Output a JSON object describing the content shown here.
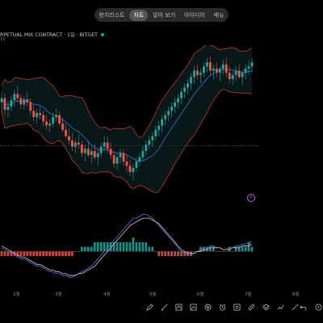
{
  "tabs": [
    {
      "label": "왓치리스트",
      "active": false
    },
    {
      "label": "차트",
      "active": true
    },
    {
      "label": "알아 보기",
      "active": false
    },
    {
      "label": "아이디어",
      "active": false
    },
    {
      "label": "메뉴",
      "active": false
    }
  ],
  "symbol": {
    "title": "RPETUAL MIX CONTRACT · 1일 · BITGET",
    "status_color": "#26a69a"
  },
  "indicator_label": "16",
  "xaxis": {
    "labels": [
      "2월",
      "3월",
      "4월",
      "5월",
      "6월",
      "7월",
      "8월"
    ]
  },
  "colors": {
    "up": "#26a69a",
    "down": "#ef5350",
    "band": "#c0392b",
    "basis": "#3f6fd1",
    "macd": "#3f6fd1",
    "signal": "#e0a8a8",
    "accent": "#b46bd6"
  },
  "toolbar_icons": [
    "pencil-icon",
    "brush-icon",
    "shapes-icon",
    "pattern-icon",
    "plus-circle-icon",
    "alarm-icon",
    "template-icon",
    "ruler-icon",
    "layers-icon",
    "trend-icon",
    "magic-wand-icon"
  ],
  "chart_data": {
    "type": "candlestick",
    "xlabel": "",
    "ylabel": "",
    "candles": [
      [
        62,
        72,
        52,
        66
      ],
      [
        66,
        70,
        50,
        55
      ],
      [
        55,
        63,
        48,
        58
      ],
      [
        58,
        68,
        54,
        64
      ],
      [
        64,
        74,
        58,
        70
      ],
      [
        70,
        78,
        62,
        66
      ],
      [
        66,
        70,
        56,
        60
      ],
      [
        60,
        68,
        55,
        65
      ],
      [
        65,
        72,
        58,
        62
      ],
      [
        62,
        66,
        50,
        54
      ],
      [
        54,
        60,
        44,
        48
      ],
      [
        48,
        56,
        42,
        52
      ],
      [
        52,
        58,
        46,
        50
      ],
      [
        50,
        54,
        40,
        44
      ],
      [
        44,
        50,
        36,
        40
      ],
      [
        40,
        46,
        34,
        42
      ],
      [
        42,
        52,
        38,
        48
      ],
      [
        48,
        56,
        44,
        50
      ],
      [
        50,
        54,
        40,
        42
      ],
      [
        42,
        48,
        34,
        36
      ],
      [
        36,
        42,
        28,
        30
      ],
      [
        30,
        38,
        22,
        26
      ],
      [
        26,
        34,
        16,
        20
      ],
      [
        20,
        28,
        14,
        24
      ],
      [
        24,
        32,
        18,
        22
      ],
      [
        22,
        26,
        10,
        14
      ],
      [
        14,
        22,
        6,
        18
      ],
      [
        18,
        26,
        10,
        12
      ],
      [
        12,
        20,
        4,
        16
      ],
      [
        16,
        22,
        8,
        10
      ],
      [
        10,
        18,
        2,
        14
      ],
      [
        14,
        24,
        10,
        20
      ],
      [
        20,
        30,
        16,
        24
      ],
      [
        24,
        30,
        14,
        18
      ],
      [
        18,
        24,
        8,
        12
      ],
      [
        12,
        16,
        0,
        4
      ],
      [
        4,
        14,
        -2,
        10
      ],
      [
        10,
        18,
        4,
        14
      ],
      [
        14,
        18,
        2,
        6
      ],
      [
        6,
        12,
        -4,
        2
      ],
      [
        2,
        8,
        -8,
        -4
      ],
      [
        -4,
        4,
        -12,
        0
      ],
      [
        0,
        10,
        -4,
        6
      ],
      [
        6,
        14,
        2,
        10
      ],
      [
        10,
        20,
        6,
        16
      ],
      [
        16,
        26,
        12,
        22
      ],
      [
        22,
        30,
        18,
        26
      ],
      [
        26,
        34,
        20,
        30
      ],
      [
        30,
        40,
        26,
        36
      ],
      [
        36,
        44,
        30,
        40
      ],
      [
        40,
        50,
        34,
        46
      ],
      [
        46,
        54,
        40,
        50
      ],
      [
        50,
        58,
        44,
        54
      ],
      [
        54,
        62,
        48,
        58
      ],
      [
        58,
        66,
        52,
        62
      ],
      [
        62,
        70,
        56,
        66
      ],
      [
        66,
        76,
        60,
        72
      ],
      [
        72,
        80,
        66,
        76
      ],
      [
        76,
        84,
        70,
        80
      ],
      [
        80,
        90,
        74,
        86
      ],
      [
        86,
        96,
        80,
        92
      ],
      [
        92,
        98,
        84,
        88
      ],
      [
        88,
        94,
        80,
        90
      ],
      [
        90,
        100,
        86,
        96
      ],
      [
        96,
        104,
        90,
        100
      ],
      [
        100,
        106,
        88,
        92
      ],
      [
        92,
        98,
        84,
        94
      ],
      [
        94,
        100,
        86,
        90
      ],
      [
        90,
        96,
        82,
        94
      ],
      [
        94,
        102,
        88,
        98
      ],
      [
        98,
        104,
        86,
        90
      ],
      [
        90,
        96,
        80,
        84
      ],
      [
        84,
        92,
        78,
        88
      ],
      [
        88,
        96,
        82,
        92
      ],
      [
        92,
        98,
        84,
        86
      ],
      [
        86,
        92,
        78,
        90
      ],
      [
        90,
        98,
        84,
        94
      ],
      [
        94,
        102,
        88,
        96
      ],
      [
        96,
        104,
        90,
        100
      ]
    ],
    "macd": [
      2,
      1,
      0,
      -1,
      -2,
      -3,
      -4,
      -4,
      -5,
      -6,
      -7,
      -8,
      -8,
      -9,
      -10,
      -11,
      -11,
      -12,
      -12,
      -13,
      -13,
      -14,
      -14,
      -13,
      -12,
      -11,
      -10,
      -9,
      -8,
      -6,
      -4,
      -2,
      0,
      2,
      4,
      6,
      8,
      10,
      12,
      14,
      16,
      18,
      18,
      19,
      20,
      20,
      19,
      18,
      16,
      14,
      12,
      10,
      8,
      6,
      4,
      2,
      0,
      -1,
      -2,
      -2,
      -1,
      0,
      1,
      2,
      2,
      3,
      3,
      2,
      2,
      1,
      1,
      2,
      2,
      3,
      3,
      4,
      4,
      5,
      5
    ],
    "signal": [
      3,
      2,
      1,
      0,
      -1,
      -2,
      -3,
      -3,
      -4,
      -5,
      -6,
      -7,
      -7,
      -8,
      -9,
      -10,
      -10,
      -11,
      -11,
      -12,
      -12,
      -13,
      -13,
      -13,
      -12,
      -12,
      -11,
      -10,
      -9,
      -8,
      -6,
      -4,
      -2,
      0,
      2,
      4,
      6,
      8,
      10,
      12,
      14,
      15,
      16,
      17,
      18,
      18,
      18,
      17,
      16,
      15,
      13,
      11,
      9,
      7,
      5,
      3,
      1,
      0,
      -1,
      -1,
      -1,
      0,
      0,
      1,
      1,
      2,
      2,
      2,
      2,
      1,
      1,
      1,
      2,
      2,
      2,
      3,
      3,
      3,
      4
    ]
  }
}
